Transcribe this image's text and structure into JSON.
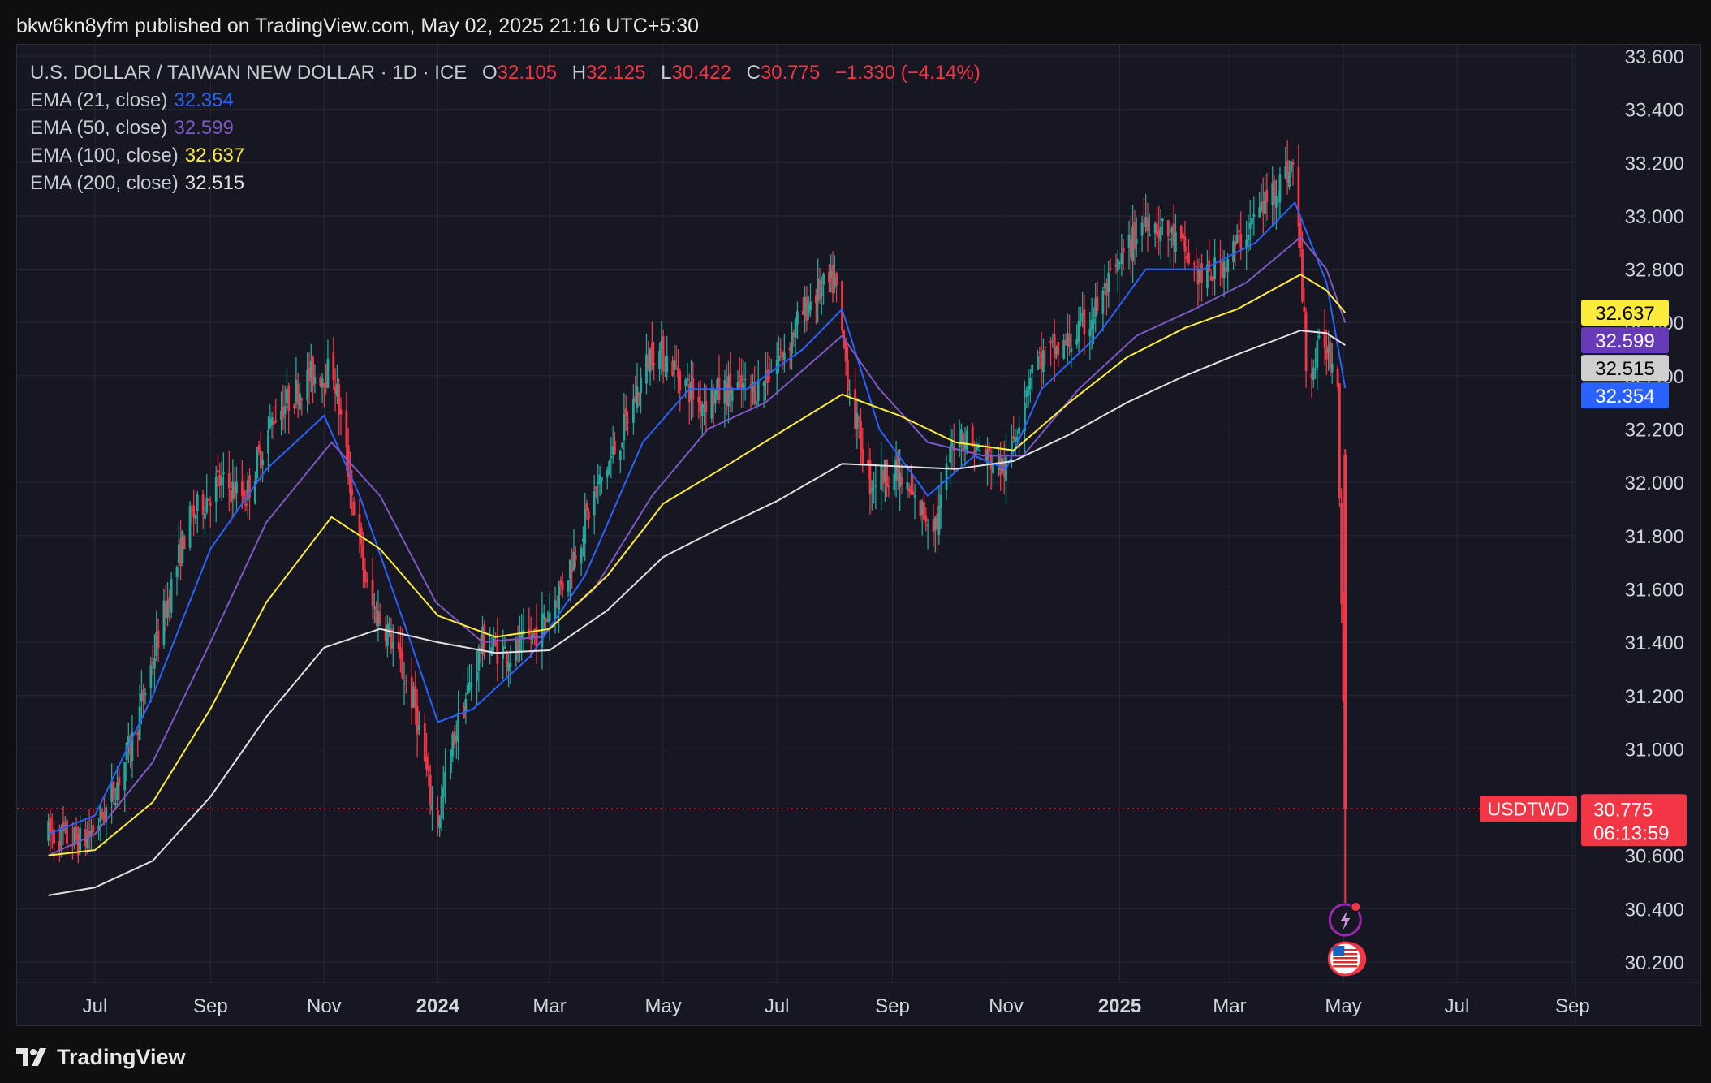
{
  "header": {
    "published": "bkw6kn8yfm published on TradingView.com, May 02, 2025 21:16 UTC+5:30"
  },
  "legend": {
    "symbol": "U.S. DOLLAR / TAIWAN NEW DOLLAR · 1D · ICE",
    "ohlc": {
      "o_label": "O",
      "o": "32.105",
      "h_label": "H",
      "h": "32.125",
      "l_label": "L",
      "l": "30.422",
      "c_label": "C",
      "c": "30.775",
      "change": "−1.330 (−4.14%)"
    },
    "ema": [
      {
        "label": "EMA (21, close)",
        "value": "32.354",
        "color": "#2962ff"
      },
      {
        "label": "EMA (50, close)",
        "value": "32.599",
        "color": "#7e57c2"
      },
      {
        "label": "EMA (100, close)",
        "value": "32.637",
        "color": "#ffeb3b"
      },
      {
        "label": "EMA (200, close)",
        "value": "32.515",
        "color": "#e0e0e0"
      }
    ]
  },
  "price_tags": {
    "symbol_tag": "USDTWD",
    "last_price": "30.775",
    "countdown": "06:13:59"
  },
  "footer": {
    "brand": "TradingView"
  },
  "colors": {
    "up": "#26a69a",
    "down": "#f23645",
    "background": "#161722",
    "grid": "#262833"
  },
  "chart_data": {
    "type": "candlestick",
    "title": "U.S. DOLLAR / TAIWAN NEW DOLLAR · 1D · ICE",
    "ylim": [
      30.1,
      33.7
    ],
    "y_ticks": [
      "33.600",
      "33.400",
      "33.200",
      "33.000",
      "32.800",
      "32.600",
      "32.400",
      "32.200",
      "32.000",
      "31.800",
      "31.600",
      "31.400",
      "31.200",
      "31.000",
      "30.600",
      "30.400",
      "30.200"
    ],
    "x_tick_labels": [
      {
        "label": "Jul",
        "date": "2023-07-01",
        "bold": false
      },
      {
        "label": "Sep",
        "date": "2023-09-01",
        "bold": false
      },
      {
        "label": "Nov",
        "date": "2023-11-01",
        "bold": false
      },
      {
        "label": "2024",
        "date": "2024-01-01",
        "bold": true
      },
      {
        "label": "Mar",
        "date": "2024-03-01",
        "bold": false
      },
      {
        "label": "May",
        "date": "2024-05-01",
        "bold": false
      },
      {
        "label": "Jul",
        "date": "2024-07-01",
        "bold": false
      },
      {
        "label": "Sep",
        "date": "2024-09-01",
        "bold": false
      },
      {
        "label": "Nov",
        "date": "2024-11-01",
        "bold": false
      },
      {
        "label": "2025",
        "date": "2025-01-01",
        "bold": true
      },
      {
        "label": "Mar",
        "date": "2025-03-01",
        "bold": false
      },
      {
        "label": "May",
        "date": "2025-05-01",
        "bold": false
      },
      {
        "label": "Jul",
        "date": "2025-07-01",
        "bold": false
      },
      {
        "label": "Sep",
        "date": "2025-09-01",
        "bold": false
      }
    ],
    "x_range": [
      "2023-06-06",
      "2025-09-15"
    ],
    "price_path": [
      [
        "2023-06-06",
        30.68
      ],
      [
        "2023-06-25",
        30.65
      ],
      [
        "2023-07-08",
        30.78
      ],
      [
        "2023-07-22",
        31.05
      ],
      [
        "2023-08-05",
        31.45
      ],
      [
        "2023-08-20",
        31.85
      ],
      [
        "2023-09-05",
        32.0
      ],
      [
        "2023-09-20",
        31.95
      ],
      [
        "2023-10-05",
        32.25
      ],
      [
        "2023-10-25",
        32.4
      ],
      [
        "2023-11-06",
        32.42
      ],
      [
        "2023-11-15",
        32.0
      ],
      [
        "2023-11-25",
        31.55
      ],
      [
        "2023-12-05",
        31.45
      ],
      [
        "2023-12-20",
        31.15
      ],
      [
        "2023-12-31",
        30.7
      ],
      [
        "2024-01-10",
        31.05
      ],
      [
        "2024-01-25",
        31.4
      ],
      [
        "2024-02-10",
        31.35
      ],
      [
        "2024-02-25",
        31.45
      ],
      [
        "2024-03-10",
        31.65
      ],
      [
        "2024-03-25",
        31.95
      ],
      [
        "2024-04-10",
        32.2
      ],
      [
        "2024-04-25",
        32.5
      ],
      [
        "2024-05-05",
        32.45
      ],
      [
        "2024-05-20",
        32.3
      ],
      [
        "2024-06-05",
        32.35
      ],
      [
        "2024-06-20",
        32.35
      ],
      [
        "2024-07-05",
        32.5
      ],
      [
        "2024-07-20",
        32.7
      ],
      [
        "2024-08-01",
        32.75
      ],
      [
        "2024-08-10",
        32.3
      ],
      [
        "2024-08-20",
        32.0
      ],
      [
        "2024-09-01",
        32.05
      ],
      [
        "2024-09-15",
        31.9
      ],
      [
        "2024-09-25",
        31.85
      ],
      [
        "2024-10-05",
        32.2
      ],
      [
        "2024-10-20",
        32.1
      ],
      [
        "2024-11-01",
        32.05
      ],
      [
        "2024-11-15",
        32.45
      ],
      [
        "2024-12-01",
        32.5
      ],
      [
        "2024-12-15",
        32.6
      ],
      [
        "2024-12-31",
        32.8
      ],
      [
        "2025-01-15",
        33.0
      ],
      [
        "2025-02-01",
        32.9
      ],
      [
        "2025-02-15",
        32.75
      ],
      [
        "2025-03-01",
        32.85
      ],
      [
        "2025-03-15",
        33.0
      ],
      [
        "2025-03-25",
        33.1
      ],
      [
        "2025-04-05",
        33.2
      ],
      [
        "2025-04-12",
        32.35
      ],
      [
        "2025-04-20",
        32.55
      ],
      [
        "2025-04-28",
        32.4
      ],
      [
        "2025-05-02",
        30.775
      ]
    ],
    "ema_series": [
      {
        "name": "EMA (21, close)",
        "color": "#2962ff",
        "points": [
          [
            "2023-06-06",
            30.68
          ],
          [
            "2023-07-01",
            30.75
          ],
          [
            "2023-08-01",
            31.2
          ],
          [
            "2023-09-01",
            31.75
          ],
          [
            "2023-10-01",
            32.05
          ],
          [
            "2023-11-01",
            32.25
          ],
          [
            "2023-11-20",
            31.95
          ],
          [
            "2023-12-15",
            31.45
          ],
          [
            "2024-01-01",
            31.1
          ],
          [
            "2024-01-20",
            31.15
          ],
          [
            "2024-02-20",
            31.35
          ],
          [
            "2024-03-20",
            31.65
          ],
          [
            "2024-04-20",
            32.15
          ],
          [
            "2024-05-15",
            32.35
          ],
          [
            "2024-06-15",
            32.35
          ],
          [
            "2024-07-15",
            32.5
          ],
          [
            "2024-08-05",
            32.65
          ],
          [
            "2024-08-25",
            32.2
          ],
          [
            "2024-09-20",
            31.95
          ],
          [
            "2024-10-15",
            32.1
          ],
          [
            "2024-11-01",
            32.05
          ],
          [
            "2024-11-20",
            32.35
          ],
          [
            "2024-12-20",
            32.55
          ],
          [
            "2025-01-15",
            32.8
          ],
          [
            "2025-02-15",
            32.8
          ],
          [
            "2025-03-15",
            32.9
          ],
          [
            "2025-04-05",
            33.05
          ],
          [
            "2025-04-22",
            32.75
          ],
          [
            "2025-05-02",
            32.354
          ]
        ]
      },
      {
        "name": "EMA (50, close)",
        "color": "#7e57c2",
        "points": [
          [
            "2023-06-06",
            30.6
          ],
          [
            "2023-07-01",
            30.68
          ],
          [
            "2023-08-01",
            30.95
          ],
          [
            "2023-09-01",
            31.4
          ],
          [
            "2023-10-01",
            31.85
          ],
          [
            "2023-11-05",
            32.15
          ],
          [
            "2023-12-01",
            31.95
          ],
          [
            "2023-12-31",
            31.55
          ],
          [
            "2024-01-25",
            31.4
          ],
          [
            "2024-02-25",
            31.42
          ],
          [
            "2024-03-25",
            31.6
          ],
          [
            "2024-04-25",
            31.95
          ],
          [
            "2024-05-25",
            32.2
          ],
          [
            "2024-06-25",
            32.3
          ],
          [
            "2024-08-05",
            32.55
          ],
          [
            "2024-08-25",
            32.35
          ],
          [
            "2024-09-20",
            32.15
          ],
          [
            "2024-10-20",
            32.1
          ],
          [
            "2024-11-10",
            32.1
          ],
          [
            "2024-12-10",
            32.35
          ],
          [
            "2025-01-10",
            32.55
          ],
          [
            "2025-02-10",
            32.65
          ],
          [
            "2025-03-10",
            32.75
          ],
          [
            "2025-04-08",
            32.92
          ],
          [
            "2025-04-22",
            32.8
          ],
          [
            "2025-05-02",
            32.599
          ]
        ]
      },
      {
        "name": "EMA (100, close)",
        "color": "#ffeb3b",
        "points": [
          [
            "2023-06-06",
            30.6
          ],
          [
            "2023-07-01",
            30.62
          ],
          [
            "2023-08-01",
            30.8
          ],
          [
            "2023-09-01",
            31.15
          ],
          [
            "2023-10-01",
            31.55
          ],
          [
            "2023-11-05",
            31.87
          ],
          [
            "2023-12-01",
            31.75
          ],
          [
            "2024-01-01",
            31.5
          ],
          [
            "2024-02-01",
            31.42
          ],
          [
            "2024-03-01",
            31.45
          ],
          [
            "2024-04-01",
            31.65
          ],
          [
            "2024-05-01",
            31.92
          ],
          [
            "2024-06-01",
            32.05
          ],
          [
            "2024-07-01",
            32.18
          ],
          [
            "2024-08-05",
            32.33
          ],
          [
            "2024-09-05",
            32.25
          ],
          [
            "2024-10-05",
            32.15
          ],
          [
            "2024-11-05",
            32.12
          ],
          [
            "2024-12-05",
            32.3
          ],
          [
            "2025-01-05",
            32.47
          ],
          [
            "2025-02-05",
            32.58
          ],
          [
            "2025-03-05",
            32.65
          ],
          [
            "2025-04-08",
            32.78
          ],
          [
            "2025-04-22",
            32.72
          ],
          [
            "2025-05-02",
            32.637
          ]
        ]
      },
      {
        "name": "EMA (200, close)",
        "color": "#e0e0e0",
        "points": [
          [
            "2023-06-06",
            30.45
          ],
          [
            "2023-07-01",
            30.48
          ],
          [
            "2023-08-01",
            30.58
          ],
          [
            "2023-09-01",
            30.82
          ],
          [
            "2023-10-01",
            31.12
          ],
          [
            "2023-11-01",
            31.38
          ],
          [
            "2023-12-01",
            31.45
          ],
          [
            "2024-01-01",
            31.4
          ],
          [
            "2024-02-01",
            31.36
          ],
          [
            "2024-03-01",
            31.37
          ],
          [
            "2024-04-01",
            31.52
          ],
          [
            "2024-05-01",
            31.72
          ],
          [
            "2024-06-01",
            31.83
          ],
          [
            "2024-07-01",
            31.93
          ],
          [
            "2024-08-05",
            32.07
          ],
          [
            "2024-09-05",
            32.06
          ],
          [
            "2024-10-05",
            32.05
          ],
          [
            "2024-11-05",
            32.08
          ],
          [
            "2024-12-05",
            32.18
          ],
          [
            "2025-01-05",
            32.3
          ],
          [
            "2025-02-05",
            32.4
          ],
          [
            "2025-03-05",
            32.48
          ],
          [
            "2025-04-08",
            32.57
          ],
          [
            "2025-04-22",
            32.56
          ],
          [
            "2025-05-02",
            32.515
          ]
        ]
      }
    ],
    "last_candle": {
      "date": "2025-05-02",
      "open": 32.105,
      "high": 32.125,
      "low": 30.422,
      "close": 30.775
    },
    "price_line": 30.775,
    "axis_tags": [
      {
        "value": "32.637",
        "color": "#ffeb3b",
        "text_color": "#000000",
        "at": 32.637
      },
      {
        "value": "32.599",
        "color": "#673ab7",
        "text_color": "#ffffff",
        "at": 32.599
      },
      {
        "value": "32.515",
        "color": "#cfcfcf",
        "text_color": "#000000",
        "at": 32.515
      },
      {
        "value": "32.354",
        "color": "#2962ff",
        "text_color": "#ffffff",
        "at": 32.354
      }
    ],
    "markers": [
      {
        "icon": "lightning-icon",
        "date": "2025-05-02"
      },
      {
        "icon": "us-flag-icon",
        "date": "2025-05-02"
      }
    ]
  }
}
